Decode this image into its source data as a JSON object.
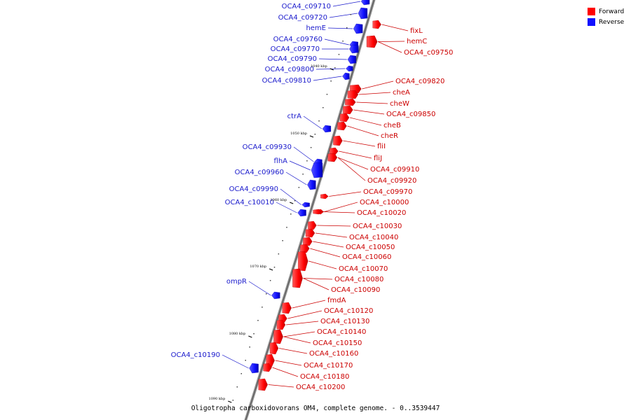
{
  "caption": "Oligotropha carboxidovorans OM4, complete genome. - 0..3539447",
  "legend": [
    {
      "label": "Forward",
      "color": "#ff0000"
    },
    {
      "label": "Reverse",
      "color": "#1010ff"
    }
  ],
  "colors": {
    "forward": "#ff0000",
    "reverse": "#1010ff",
    "forward_label": "#cc0000",
    "reverse_label": "#1a1acc",
    "backbone": "#888888"
  },
  "kbp_marks": [
    "1040 kbp",
    "1050 kbp",
    "1060 kbp",
    "1070 kbp",
    "1080 kbp",
    "1090 kbp"
  ],
  "forward_genes": [
    "fixL",
    "hemC",
    "OCA4_c09750",
    "OCA4_c09820",
    "cheA",
    "cheW",
    "OCA4_c09850",
    "cheB",
    "cheR",
    "fliI",
    "fliJ",
    "OCA4_c09910",
    "OCA4_c09920",
    "OCA4_c09970",
    "OCA4_c10000",
    "OCA4_c10020",
    "OCA4_c10030",
    "OCA4_c10040",
    "OCA4_c10050",
    "OCA4_c10060",
    "OCA4_c10070",
    "OCA4_c10080",
    "OCA4_c10090",
    "fmdA",
    "OCA4_c10120",
    "OCA4_c10130",
    "OCA4_c10140",
    "OCA4_c10150",
    "OCA4_c10160",
    "OCA4_c10170",
    "OCA4_c10180",
    "OCA4_c10200"
  ],
  "reverse_genes": [
    "OCA4_c09710",
    "OCA4_c09720",
    "hemE",
    "OCA4_c09760",
    "OCA4_c09770",
    "OCA4_c09790",
    "OCA4_c09800",
    "OCA4_c09810",
    "ctrA",
    "OCA4_c09930",
    "flhA",
    "OCA4_c09960",
    "OCA4_c09990",
    "OCA4_c10010",
    "ompR",
    "OCA4_c10190"
  ]
}
